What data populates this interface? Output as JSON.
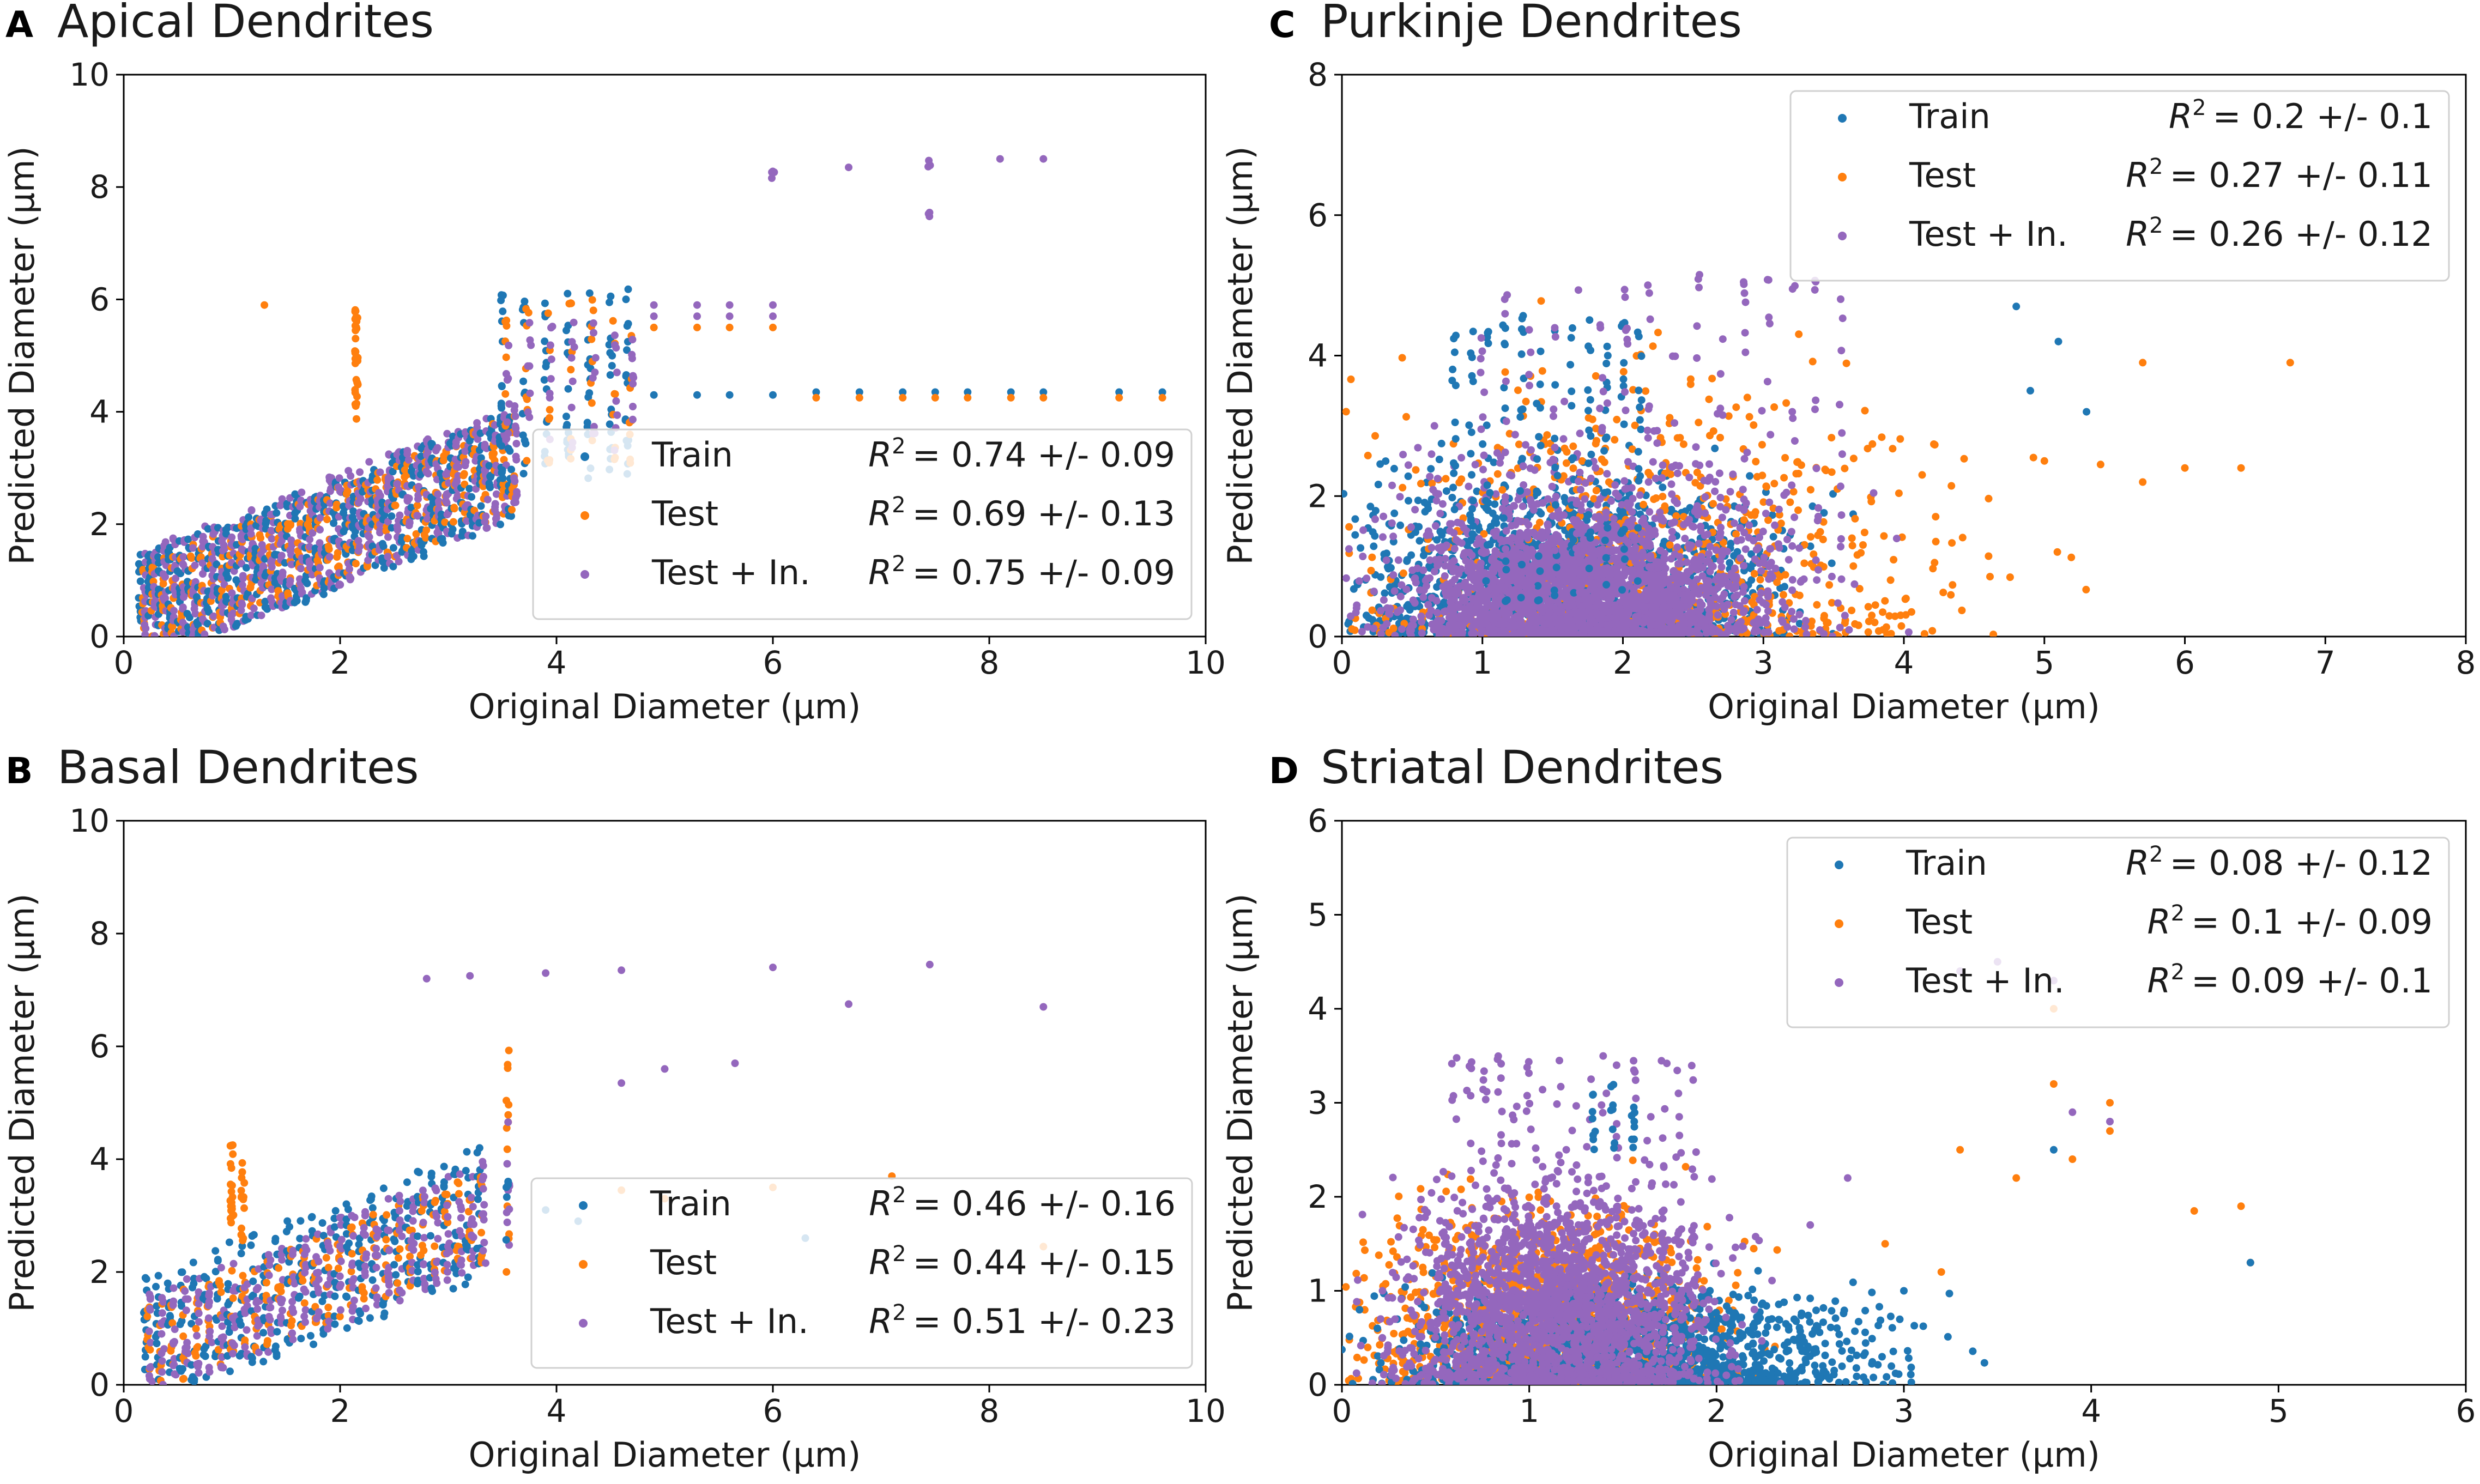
{
  "colors": {
    "train": "#1f77b4",
    "test": "#ff7f0e",
    "test_inner": "#9467bd"
  },
  "chart_data": [
    {
      "panel": "A",
      "title": "Apical Dendrites",
      "type": "scatter",
      "xlabel": "Original Diameter (μm)",
      "ylabel": "Predicted Diameter (μm)",
      "xlim": [
        0,
        10
      ],
      "ylim": [
        0,
        10
      ],
      "xticks": [
        "0",
        "2",
        "4",
        "6",
        "8",
        "10"
      ],
      "yticks": [
        "0",
        "2",
        "4",
        "6",
        "8",
        "10"
      ],
      "legend_position": "lower-right",
      "legend": [
        {
          "label": "Train",
          "r2": "= 0.74 +/- 0.09"
        },
        {
          "label": "Test",
          "r2": "= 0.69 +/- 0.13"
        },
        {
          "label": "Test + In.",
          "r2": "= 0.75 +/- 0.09"
        }
      ]
    },
    {
      "panel": "B",
      "title": "Basal Dendrites",
      "type": "scatter",
      "xlabel": "Original Diameter (μm)",
      "ylabel": "Predicted Diameter (μm)",
      "xlim": [
        0,
        10
      ],
      "ylim": [
        0,
        10
      ],
      "xticks": [
        "0",
        "2",
        "4",
        "6",
        "8",
        "10"
      ],
      "yticks": [
        "0",
        "2",
        "4",
        "6",
        "8",
        "10"
      ],
      "legend_position": "lower-right",
      "legend": [
        {
          "label": "Train",
          "r2": "= 0.46 +/- 0.16"
        },
        {
          "label": "Test",
          "r2": "= 0.44 +/- 0.15"
        },
        {
          "label": "Test + In.",
          "r2": "= 0.51 +/- 0.23"
        }
      ]
    },
    {
      "panel": "C",
      "title": "Purkinje Dendrites",
      "type": "scatter",
      "xlabel": "Original Diameter (μm)",
      "ylabel": "Predicted Diameter (μm)",
      "xlim": [
        0,
        8
      ],
      "ylim": [
        0,
        8
      ],
      "xticks": [
        "0",
        "1",
        "2",
        "3",
        "4",
        "5",
        "6",
        "7",
        "8"
      ],
      "yticks": [
        "0",
        "2",
        "4",
        "6",
        "8"
      ],
      "legend_position": "upper-right",
      "legend": [
        {
          "label": "Train",
          "r2": "= 0.2 +/- 0.1"
        },
        {
          "label": "Test",
          "r2": "= 0.27 +/- 0.11"
        },
        {
          "label": "Test + In.",
          "r2": "= 0.26 +/- 0.12"
        }
      ]
    },
    {
      "panel": "D",
      "title": "Striatal Dendrites",
      "type": "scatter",
      "xlabel": "Original Diameter (μm)",
      "ylabel": "Predicted Diameter (μm)",
      "xlim": [
        0,
        6
      ],
      "ylim": [
        0,
        6
      ],
      "xticks": [
        "0",
        "1",
        "2",
        "3",
        "4",
        "5",
        "6"
      ],
      "yticks": [
        "0",
        "1",
        "2",
        "3",
        "4",
        "5",
        "6"
      ],
      "legend_position": "upper-right",
      "legend": [
        {
          "label": "Train",
          "r2": "= 0.08 +/- 0.12"
        },
        {
          "label": "Test",
          "r2": "= 0.1 +/- 0.09"
        },
        {
          "label": "Test + In.",
          "r2": "= 0.09 +/- 0.1"
        }
      ]
    }
  ]
}
